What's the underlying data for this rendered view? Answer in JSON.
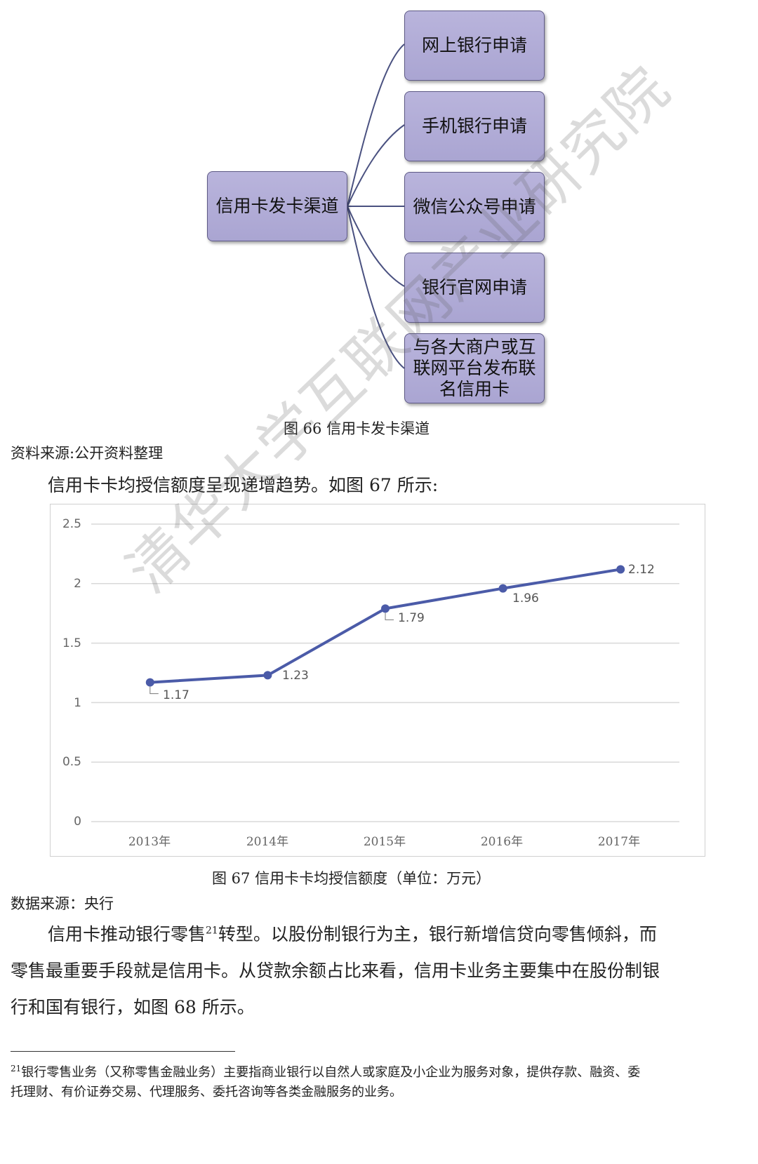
{
  "diagram": {
    "root": "信用卡发卡渠道",
    "children": [
      "网上银行申请",
      "手机银行申请",
      "微信公众号申请",
      "银行官网申请",
      "与各大商户或互联网平台发布联名信用卡"
    ]
  },
  "figure66_caption": "图 66  信用卡发卡渠道",
  "source1": "资料来源:公开资料整理",
  "intro_sentence": "信用卡卡均授信额度呈现递增趋势。如图 67 所示:",
  "chart_data": {
    "type": "line",
    "categories": [
      "2013年",
      "2014年",
      "2015年",
      "2016年",
      "2017年"
    ],
    "series": [
      {
        "values": [
          1.17,
          1.23,
          1.79,
          1.96,
          2.12
        ]
      }
    ],
    "data_labels": [
      "1.17",
      "1.23",
      "1.79",
      "1.96",
      "2.12"
    ],
    "y_ticks": [
      "0",
      "0.5",
      "1",
      "1.5",
      "2",
      "2.5"
    ],
    "ylim": [
      0,
      2.5
    ],
    "grid": true,
    "line_color": "#4b5ba8"
  },
  "figure67_caption": "图 67  信用卡卡均授信额度（单位：万元）",
  "source2": "数据来源：央行",
  "para1": {
    "line1_a": "信用卡推动银行零售",
    "line1_sup": "21",
    "line1_b": "转型。以股份制银行为主，银行新增信贷向零售倾斜，而",
    "line2": "零售最重要手段就是信用卡。从贷款余额占比来看，信用卡业务主要集中在股份制银",
    "line3": "行和国有银行，如图 68 所示。"
  },
  "footnote": {
    "sup": "21",
    "line1": "银行零售业务（又称零售金融业务）主要指商业银行以自然人或家庭及小企业为服务对象，提供存款、融资、委",
    "line2": "托理财、有价证券交易、代理服务、委托咨询等各类金融服务的业务。"
  },
  "watermark": "清华大学互联网产业研究院"
}
